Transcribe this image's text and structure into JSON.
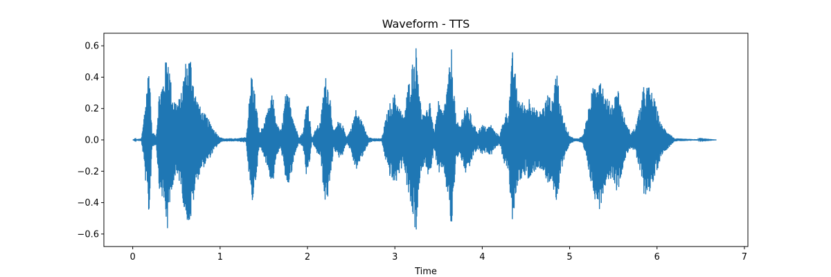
{
  "chart_data": {
    "type": "line",
    "title": "Waveform - TTS",
    "xlabel": "Time",
    "ylabel": "",
    "xlim": [
      -0.33,
      7.04
    ],
    "ylim": [
      -0.68,
      0.68
    ],
    "xticks": [
      0,
      1,
      2,
      3,
      4,
      5,
      6,
      7
    ],
    "xtick_labels": [
      "0",
      "1",
      "2",
      "3",
      "4",
      "5",
      "6",
      "7"
    ],
    "yticks": [
      -0.6,
      -0.4,
      -0.2,
      0.0,
      0.2,
      0.4,
      0.6
    ],
    "ytick_labels": [
      "−0.6",
      "−0.4",
      "−0.2",
      "0.0",
      "0.2",
      "0.4",
      "0.6"
    ],
    "grid": false,
    "series_color": "#1f77b4",
    "series": [
      {
        "x": [
          0.0,
          0.1,
          0.12,
          0.16,
          0.19,
          0.22,
          0.27,
          0.3,
          0.35,
          0.4,
          0.45,
          0.5,
          0.55,
          0.6,
          0.66,
          0.72,
          0.78,
          0.85,
          0.92,
          0.98,
          1.03,
          1.1,
          1.2,
          1.3,
          1.36,
          1.4,
          1.45,
          1.5,
          1.55,
          1.6,
          1.65,
          1.7,
          1.75,
          1.8,
          1.85,
          1.9,
          1.95,
          2.0,
          2.05,
          2.1,
          2.15,
          2.2,
          2.25,
          2.3,
          2.35,
          2.4,
          2.45,
          2.5,
          2.55,
          2.6,
          2.7,
          2.75,
          2.8,
          2.85,
          2.9,
          2.95,
          3.0,
          3.05,
          3.1,
          3.15,
          3.2,
          3.25,
          3.3,
          3.35,
          3.4,
          3.45,
          3.5,
          3.55,
          3.6,
          3.65,
          3.7,
          3.75,
          3.8,
          3.85,
          3.9,
          3.95,
          4.0,
          4.05,
          4.1,
          4.15,
          4.2,
          4.25,
          4.3,
          4.35,
          4.4,
          4.45,
          4.5,
          4.55,
          4.6,
          4.65,
          4.7,
          4.75,
          4.8,
          4.85,
          4.9,
          4.95,
          5.0,
          5.05,
          5.1,
          5.15,
          5.2,
          5.25,
          5.3,
          5.35,
          5.4,
          5.45,
          5.5,
          5.55,
          5.6,
          5.65,
          5.7,
          5.75,
          5.8,
          5.85,
          5.9,
          5.95,
          6.0,
          6.05,
          6.2,
          6.4,
          6.68
        ],
        "amplitude": [
          0.0,
          0.01,
          0.1,
          0.35,
          0.52,
          0.05,
          0.03,
          0.3,
          0.4,
          0.6,
          0.3,
          0.25,
          0.28,
          0.5,
          0.55,
          0.3,
          0.2,
          0.15,
          0.08,
          0.03,
          0.01,
          0.01,
          0.01,
          0.02,
          0.45,
          0.3,
          0.05,
          0.1,
          0.2,
          0.3,
          0.1,
          0.06,
          0.3,
          0.28,
          0.12,
          0.02,
          0.05,
          0.3,
          0.01,
          0.08,
          0.12,
          0.42,
          0.35,
          0.05,
          0.12,
          0.1,
          0.02,
          0.08,
          0.2,
          0.15,
          0.02,
          0.01,
          0.01,
          0.01,
          0.15,
          0.25,
          0.3,
          0.22,
          0.15,
          0.35,
          0.5,
          0.62,
          0.2,
          0.15,
          0.28,
          0.05,
          0.25,
          0.18,
          0.35,
          0.6,
          0.12,
          0.1,
          0.22,
          0.2,
          0.1,
          0.06,
          0.1,
          0.08,
          0.1,
          0.05,
          0.03,
          0.15,
          0.2,
          0.59,
          0.3,
          0.25,
          0.22,
          0.3,
          0.2,
          0.18,
          0.22,
          0.3,
          0.25,
          0.5,
          0.2,
          0.1,
          0.03,
          0.01,
          0.01,
          0.03,
          0.15,
          0.3,
          0.4,
          0.45,
          0.3,
          0.25,
          0.25,
          0.35,
          0.2,
          0.1,
          0.05,
          0.08,
          0.2,
          0.35,
          0.35,
          0.3,
          0.2,
          0.1,
          0.01,
          0.005,
          0.0
        ]
      }
    ]
  }
}
